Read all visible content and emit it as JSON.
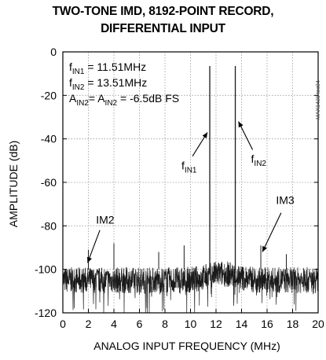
{
  "title_line1": "TWO-TONE IMD, 8192-POINT RECORD,",
  "title_line2": "DIFFERENTIAL INPUT",
  "figure_code": "MAX1421 toc04",
  "colors": {
    "trace": "#1a1a1a",
    "grid": "#9a9a9a",
    "axis": "#000000"
  },
  "chart_data": {
    "type": "line",
    "title": "TWO-TONE IMD, 8192-POINT RECORD, DIFFERENTIAL INPUT",
    "xlabel": "ANALOG INPUT FREQUENCY (MHz)",
    "ylabel": "AMPLITUDE (dB)",
    "xlim": [
      0,
      20
    ],
    "ylim": [
      -120,
      0
    ],
    "xticks": [
      "0",
      "2",
      "4",
      "6",
      "8",
      "10",
      "12",
      "14",
      "16",
      "18",
      "20"
    ],
    "yticks": [
      "0",
      "-20",
      "-40",
      "-60",
      "-80",
      "-100",
      "-120"
    ],
    "grid": true,
    "noise_floor_db": -105,
    "tones": [
      {
        "freq_mhz": 11.51,
        "amp_db": -6.5,
        "label_main": "f",
        "label_sub": "IN1"
      },
      {
        "freq_mhz": 13.51,
        "amp_db": -6.5,
        "label_main": "f",
        "label_sub": "IN2"
      }
    ],
    "spurs": [
      {
        "freq_mhz": 2.0,
        "amp_db": -91
      },
      {
        "freq_mhz": 4.0,
        "amp_db": -88
      },
      {
        "freq_mhz": 9.5,
        "amp_db": -89
      },
      {
        "freq_mhz": 15.51,
        "amp_db": -89
      },
      {
        "freq_mhz": 7.51,
        "amp_db": -92
      },
      {
        "freq_mhz": 17.51,
        "amp_db": -93
      }
    ],
    "annotations": [
      {
        "text": "IM2",
        "points_to_mhz": 2.0
      },
      {
        "text": "IM3",
        "points_to_mhz": 15.51
      }
    ],
    "legend": [
      {
        "main": "f",
        "sub": "IN1",
        "rest": " = 11.51MHz"
      },
      {
        "main": "f",
        "sub": "IN2",
        "rest": " = 13.51MHz"
      },
      {
        "main": "A",
        "sub": "IN2",
        "rest": "= A",
        "sub2": "IN2",
        "rest2": " = -6.5dB FS"
      }
    ]
  }
}
